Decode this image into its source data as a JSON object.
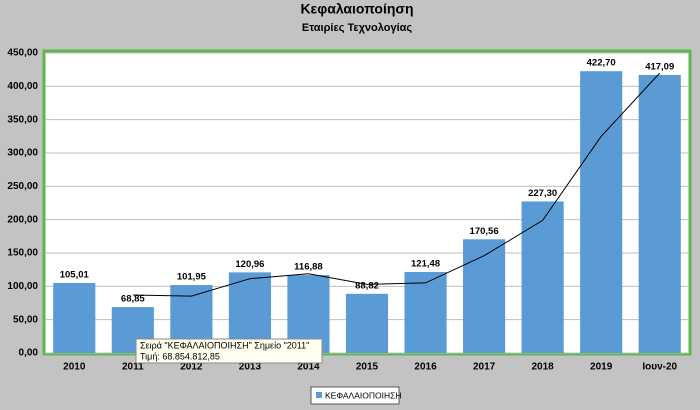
{
  "chart_data": {
    "type": "bar",
    "title": "Κεφαλαιοποίηση",
    "subtitle": "Εταιρίες Τεχνολογίας",
    "categories": [
      "2010",
      "2011",
      "2012",
      "2013",
      "2014",
      "2015",
      "2016",
      "2017",
      "2018",
      "2019",
      "Ιουν-20"
    ],
    "series": [
      {
        "name": "ΚΕΦΑΛΑΙΟΠΟΙΗΣΗ",
        "color": "#5b9bd5",
        "values": [
          105.01,
          68.85,
          101.95,
          120.96,
          116.88,
          88.82,
          121.48,
          170.56,
          227.3,
          422.7,
          417.09
        ],
        "value_labels": [
          "105,01",
          "68,85",
          "101,95",
          "120,96",
          "116,88",
          "88,82",
          "121,48",
          "170,56",
          "227,30",
          "422,70",
          "417,09"
        ]
      }
    ],
    "trendline": {
      "color": "#000000",
      "values": [
        null,
        86.93,
        85.4,
        111.46,
        118.92,
        102.85,
        105.15,
        146.02,
        198.93,
        325.0,
        419.9
      ]
    },
    "ylim": [
      0,
      450
    ],
    "yticks": [
      {
        "value": 0,
        "label": "0,00"
      },
      {
        "value": 50,
        "label": "50,00"
      },
      {
        "value": 100,
        "label": "100,00"
      },
      {
        "value": 150,
        "label": "150,00"
      },
      {
        "value": 200,
        "label": "200,00"
      },
      {
        "value": 250,
        "label": "250,00"
      },
      {
        "value": 300,
        "label": "300,00"
      },
      {
        "value": 350,
        "label": "350,00"
      },
      {
        "value": 400,
        "label": "400,00"
      },
      {
        "value": 450,
        "label": "450,00"
      }
    ],
    "grid": true,
    "legend": "bottom",
    "tooltip": [
      "Σειρά \"ΚΕΦΑΛΑΙΟΠΟΙΗΣΗ\" Σημείο \"2011\"",
      "Τιμή: 68.854.812,85"
    ]
  }
}
